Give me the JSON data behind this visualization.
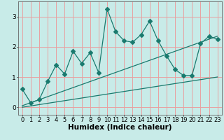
{
  "title": "",
  "xlabel": "Humidex (Indice chaleur)",
  "background_color": "#c8ebe8",
  "grid_color": "#e8a0a0",
  "line_color": "#1a7a6e",
  "x_data": [
    0,
    1,
    2,
    3,
    4,
    5,
    6,
    7,
    8,
    9,
    10,
    11,
    12,
    13,
    14,
    15,
    16,
    17,
    18,
    19,
    20,
    21,
    22,
    23
  ],
  "y_main": [
    0.6,
    0.15,
    0.25,
    0.85,
    1.4,
    1.1,
    1.85,
    1.45,
    1.8,
    1.15,
    3.25,
    2.5,
    2.2,
    2.15,
    2.4,
    2.85,
    2.2,
    1.7,
    1.25,
    1.05,
    1.05,
    2.1,
    2.35,
    2.25
  ],
  "y_trend1_x": [
    0,
    23
  ],
  "y_trend1_y": [
    0.05,
    2.35
  ],
  "y_trend2_x": [
    0,
    23
  ],
  "y_trend2_y": [
    0.0,
    1.0
  ],
  "ylim": [
    -0.25,
    3.5
  ],
  "xlim": [
    -0.5,
    23.5
  ],
  "yticks": [
    0,
    1,
    2,
    3
  ],
  "xticks": [
    0,
    1,
    2,
    3,
    4,
    5,
    6,
    7,
    8,
    9,
    10,
    11,
    12,
    13,
    14,
    15,
    16,
    17,
    18,
    19,
    20,
    21,
    22,
    23
  ],
  "tick_fontsize": 6.0,
  "xlabel_fontsize": 7.5
}
